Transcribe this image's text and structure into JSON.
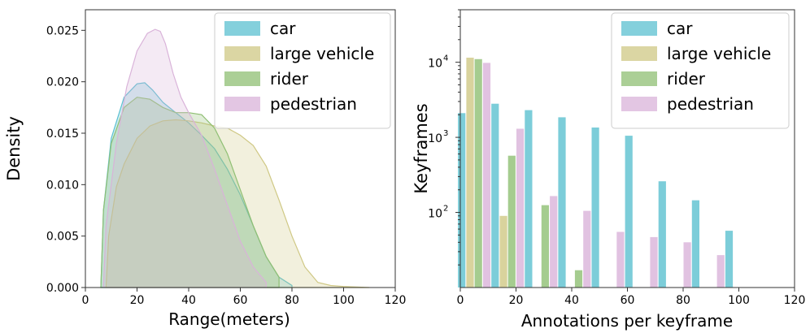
{
  "chart_data": [
    {
      "type": "area",
      "title": "",
      "xlabel": "Range(meters)",
      "ylabel": "Density",
      "xlim": [
        0,
        120
      ],
      "ylim": [
        0,
        0.027
      ],
      "xticks": [
        "0",
        "20",
        "40",
        "60",
        "80",
        "100",
        "120"
      ],
      "yticks": [
        "0.000",
        "0.005",
        "0.010",
        "0.015",
        "0.020",
        "0.025"
      ],
      "legend_position": "top-right",
      "grid": false,
      "series": [
        {
          "name": "car",
          "color": "#5bc0d0",
          "x": [
            6,
            7,
            10,
            15,
            20,
            23,
            26,
            30,
            35,
            40,
            45,
            50,
            55,
            60,
            65,
            70,
            75,
            80
          ],
          "y": [
            0.0,
            0.0075,
            0.0145,
            0.0185,
            0.0198,
            0.0199,
            0.0192,
            0.018,
            0.017,
            0.016,
            0.0148,
            0.0135,
            0.0115,
            0.009,
            0.006,
            0.003,
            0.001,
            0.0002
          ]
        },
        {
          "name": "large vehicle",
          "color": "#cfc884",
          "x": [
            8,
            9,
            12,
            15,
            20,
            25,
            30,
            35,
            40,
            45,
            50,
            55,
            60,
            65,
            70,
            75,
            80,
            85,
            90,
            95,
            100,
            110
          ],
          "y": [
            0.0,
            0.005,
            0.0098,
            0.012,
            0.0145,
            0.0157,
            0.0162,
            0.0163,
            0.0162,
            0.016,
            0.0157,
            0.0155,
            0.0148,
            0.0138,
            0.0118,
            0.0085,
            0.005,
            0.002,
            0.0005,
            0.0002,
            0.0001,
            0.0
          ]
        },
        {
          "name": "rider",
          "color": "#8fbf73",
          "x": [
            6,
            7,
            10,
            15,
            20,
            25,
            30,
            35,
            40,
            45,
            50,
            55,
            60,
            65,
            70,
            75
          ],
          "y": [
            0.0,
            0.0075,
            0.014,
            0.0175,
            0.0185,
            0.0183,
            0.0175,
            0.017,
            0.017,
            0.0168,
            0.0155,
            0.013,
            0.0095,
            0.006,
            0.003,
            0.001
          ]
        },
        {
          "name": "pedestrian",
          "color": "#d9b3d9",
          "x": [
            7,
            8,
            12,
            16,
            20,
            24,
            27,
            29,
            31,
            34,
            37,
            40,
            45,
            50,
            55,
            60,
            65,
            70
          ],
          "y": [
            0.0,
            0.006,
            0.014,
            0.0195,
            0.023,
            0.0247,
            0.0251,
            0.0249,
            0.0237,
            0.0208,
            0.0185,
            0.017,
            0.0148,
            0.0115,
            0.008,
            0.0045,
            0.002,
            0.0005
          ]
        }
      ]
    },
    {
      "type": "bar",
      "title": "",
      "xlabel": "Annotations per keyframe",
      "ylabel": "Keyframes",
      "y_scale": "log",
      "xlim": [
        0,
        120
      ],
      "ylim": [
        10,
        50000
      ],
      "xticks": [
        "0",
        "20",
        "40",
        "60",
        "80",
        "100",
        "120"
      ],
      "yticks": [
        {
          "base": "10",
          "exp": "2"
        },
        {
          "base": "10",
          "exp": "3"
        },
        {
          "base": "10",
          "exp": "4"
        }
      ],
      "legend_position": "top-right",
      "grid": false,
      "categories": [
        5,
        17,
        29,
        41,
        53,
        65,
        77,
        89,
        101
      ],
      "series": [
        {
          "name": "car",
          "color": "#5bc0d0",
          "values": [
            2100,
            2800,
            2300,
            1850,
            1350,
            1050,
            260,
            145,
            57
          ]
        },
        {
          "name": "large vehicle",
          "color": "#cfc884",
          "values": [
            11500,
            90,
            null,
            null,
            null,
            null,
            null,
            null,
            null
          ]
        },
        {
          "name": "rider",
          "color": "#8fbf73",
          "values": [
            11000,
            570,
            125,
            17,
            null,
            null,
            null,
            null,
            null
          ]
        },
        {
          "name": "pedestrian",
          "color": "#d9b3d9",
          "values": [
            9800,
            1300,
            165,
            105,
            55,
            47,
            40,
            27,
            null
          ]
        }
      ]
    }
  ]
}
